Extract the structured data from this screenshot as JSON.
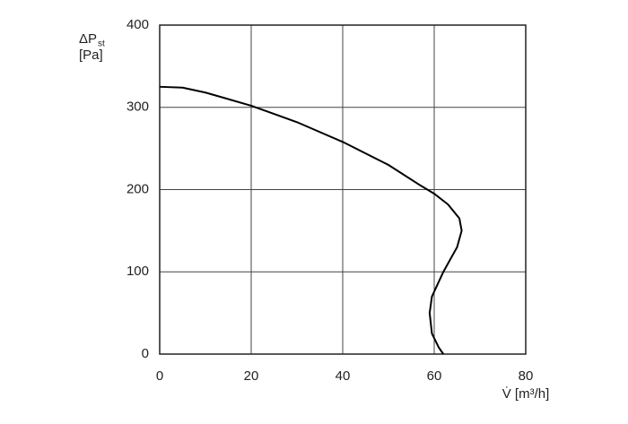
{
  "chart_data": {
    "type": "line",
    "y_label": "ΔP",
    "y_label_sub": "st",
    "y_unit": "[Pa]",
    "x_label": "V̇ [m³/h]",
    "x": [
      0,
      5,
      10,
      20,
      30,
      40,
      50,
      57,
      60,
      63,
      65.5,
      66,
      65,
      62,
      59.5,
      59,
      59.5,
      61,
      62
    ],
    "series": [
      {
        "color": "#000000",
        "values": [
          325,
          324,
          318,
          302,
          282,
          258,
          230,
          205,
          195,
          182,
          165,
          150,
          130,
          100,
          70,
          50,
          25,
          8,
          0
        ]
      }
    ],
    "xlim": [
      0,
      80
    ],
    "xticks": [
      0,
      20,
      40,
      60,
      80
    ],
    "ylim": [
      0,
      400
    ],
    "yticks": [
      0,
      100,
      200,
      300,
      400
    ],
    "grid": true
  }
}
